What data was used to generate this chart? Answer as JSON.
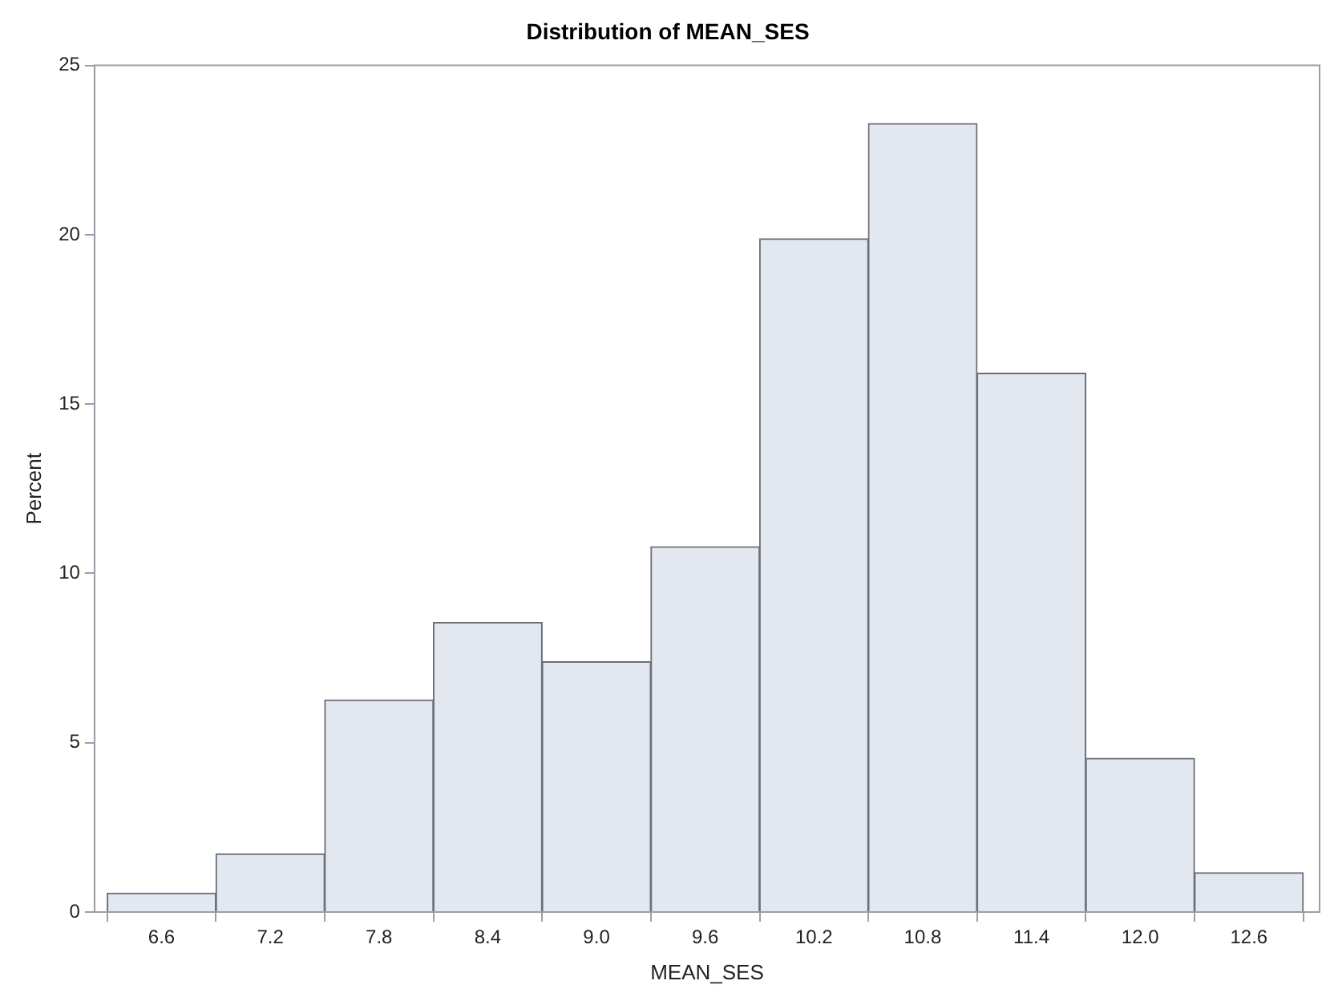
{
  "chart_data": {
    "type": "histogram",
    "title": "Distribution of MEAN_SES",
    "xlabel": "MEAN_SES",
    "ylabel": "Percent",
    "bins": [
      6.3,
      6.9,
      7.5,
      8.1,
      8.7,
      9.3,
      9.9,
      10.5,
      11.1,
      11.7,
      12.3,
      12.9
    ],
    "values": [
      0.56,
      1.72,
      6.26,
      8.55,
      7.39,
      10.79,
      19.88,
      23.28,
      15.91,
      4.54,
      1.16
    ],
    "color": "#e3e7f0",
    "xlim": [
      6.23,
      12.99
    ],
    "xticks": [
      6.6,
      7.2,
      7.8,
      8.4,
      {
        "value": 9,
        "label": "9.0"
      },
      9.6,
      10.2,
      10.8,
      11.4,
      {
        "value": 12,
        "label": "12.0"
      },
      12.6
    ],
    "ylim": [
      0,
      25
    ],
    "yticks": [
      0,
      5,
      10,
      15,
      20,
      25
    ],
    "grid": false,
    "legend": false
  }
}
